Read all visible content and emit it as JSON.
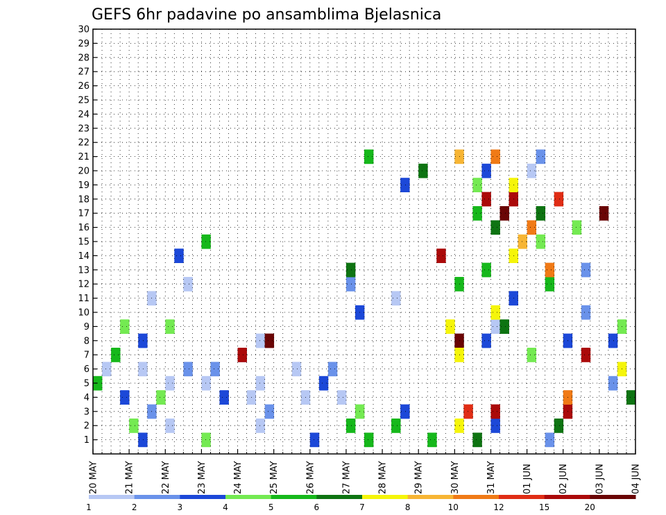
{
  "chart_data": {
    "type": "heatmap",
    "title": "GEFS 6hr padavine po ansamblima Bjelasnica",
    "xlabel": "",
    "ylabel": "",
    "x_tick_labels": [
      "20 MAY",
      "21 MAY",
      "22 MAY",
      "23 MAY",
      "24 MAY",
      "25 MAY",
      "26 MAY",
      "27 MAY",
      "28 MAY",
      "29 MAY",
      "30 MAY",
      "31 MAY",
      "01 JUN",
      "02 JUN",
      "03 JUN",
      "04 JUN"
    ],
    "x_range": [
      "2020-05-20 00Z",
      "2020-06-04 00Z"
    ],
    "time_step_hours": 6,
    "y_range": [
      0,
      30
    ],
    "y_tick_labels": [
      "1",
      "2",
      "3",
      "4",
      "5",
      "6",
      "7",
      "8",
      "9",
      "10",
      "11",
      "12",
      "13",
      "14",
      "15",
      "16",
      "17",
      "18",
      "19",
      "20",
      "21",
      "22",
      "23",
      "24",
      "25",
      "26",
      "27",
      "28",
      "29",
      "30"
    ],
    "grid": "dotted",
    "colorbar": {
      "placement": "bottom",
      "labels": [
        "1",
        "2",
        "3",
        "4",
        "5",
        "6",
        "7",
        "8",
        "10",
        "12",
        "15",
        "20"
      ],
      "colors": [
        "#b7c8f4",
        "#6a92ea",
        "#1c48d8",
        "#74ea52",
        "#16b81b",
        "#0e7412",
        "#f5f50a",
        "#f7b534",
        "#f07a16",
        "#e02d15",
        "#ab0a0a",
        "#6a0505"
      ]
    },
    "legend": "none",
    "cells": [
      [
        1,
        3,
        5
      ],
      [
        1,
        4,
        4
      ],
      [
        2,
        1,
        1
      ],
      [
        2,
        3,
        3
      ],
      [
        2,
        1,
        8
      ],
      [
        2,
        2,
        10
      ],
      [
        2,
        1,
        17
      ],
      [
        2,
        1,
        18
      ],
      [
        2,
        1,
        22
      ],
      [
        2,
        1,
        23
      ],
      [
        2,
        3,
        25
      ],
      [
        2,
        2,
        26
      ],
      [
        2,
        1,
        27
      ],
      [
        1,
        1,
        8
      ],
      [
        1,
        2,
        6
      ],
      [
        1,
        4,
        12
      ],
      [
        1,
        1,
        18
      ],
      [
        1,
        2,
        19
      ],
      [
        1,
        3,
        24
      ],
      [
        1,
        5,
        28
      ],
      [
        1,
        4,
        29
      ],
      [
        1,
        5,
        30
      ],
      [
        1,
        5,
        33
      ],
      [
        1,
        3,
        34
      ],
      [
        1,
        5,
        37
      ],
      [
        1,
        7,
        40
      ],
      [
        1,
        10,
        41
      ],
      [
        1,
        6,
        42
      ],
      [
        1,
        3,
        44
      ],
      [
        1,
        11,
        44
      ],
      [
        1,
        2,
        50
      ],
      [
        1,
        6,
        51
      ],
      [
        1,
        11,
        52
      ],
      [
        2,
        9,
        52
      ],
      [
        2,
        2,
        57
      ],
      [
        2,
        7,
        58
      ],
      [
        2,
        6,
        59
      ],
      [
        2,
        5,
        60
      ],
      [
        2,
        1,
        65
      ],
      [
        2,
        4,
        67
      ],
      [
        2,
        1,
        72
      ],
      [
        2,
        2,
        73
      ],
      [
        2,
        3,
        74
      ],
      [
        3,
        12,
        40
      ],
      [
        3,
        1,
        44
      ],
      [
        3,
        4,
        48
      ],
      [
        3,
        3,
        52
      ],
      [
        3,
        4,
        58
      ],
      [
        3,
        5,
        62
      ],
      [
        3,
        3,
        65
      ],
      [
        3,
        4,
        68
      ],
      [
        3,
        2,
        76
      ],
      [
        3,
        1,
        78
      ],
      [
        3,
        7,
        99
      ],
      [
        3,
        7,
        100
      ],
      [
        3,
        3,
        103
      ],
      [
        3,
        6,
        105
      ],
      [
        3,
        11,
        114
      ],
      [
        3,
        3,
        117
      ],
      [
        3,
        4,
        123
      ],
      [
        3,
        11,
        136
      ],
      [
        3,
        12,
        139
      ],
      [
        4,
        2,
        28
      ],
      [
        4,
        3,
        29
      ],
      [
        4,
        1,
        33
      ],
      [
        4,
        5,
        40
      ],
      [
        4,
        7,
        44
      ],
      [
        4,
        3,
        46
      ],
      [
        4,
        5,
        50
      ],
      [
        4,
        2,
        54
      ],
      [
        4,
        1,
        66
      ],
      [
        4,
        1,
        70
      ],
      [
        5,
        5,
        43
      ],
      [
        5,
        7,
        46
      ],
      [
        5,
        4,
        49
      ],
      [
        5,
        2,
        54
      ],
      [
        5,
        3,
        69
      ],
      [
        5,
        5,
        72
      ],
      [
        5,
        6,
        88
      ],
      [
        5,
        11,
        98
      ],
      [
        5,
        8,
        107
      ],
      [
        5,
        9,
        110
      ],
      [
        6,
        5,
        42
      ],
      [
        6,
        11,
        43
      ],
      [
        6,
        6,
        44
      ],
      [
        6,
        12,
        45
      ],
      [
        6,
        11,
        46
      ],
      [
        6,
        9,
        48
      ],
      [
        6,
        6,
        49
      ],
      [
        6,
        10,
        51
      ],
      [
        6,
        4,
        53
      ],
      [
        6,
        12,
        56
      ],
      [
        7,
        5,
        90
      ],
      [
        7,
        3,
        94
      ],
      [
        7,
        6,
        96
      ],
      [
        7,
        8,
        100
      ],
      [
        7,
        4,
        102
      ],
      [
        7,
        3,
        103
      ],
      [
        7,
        9,
        104
      ],
      [
        7,
        7,
        106
      ],
      [
        7,
        1,
        108
      ],
      [
        7,
        2,
        109
      ]
    ]
  }
}
